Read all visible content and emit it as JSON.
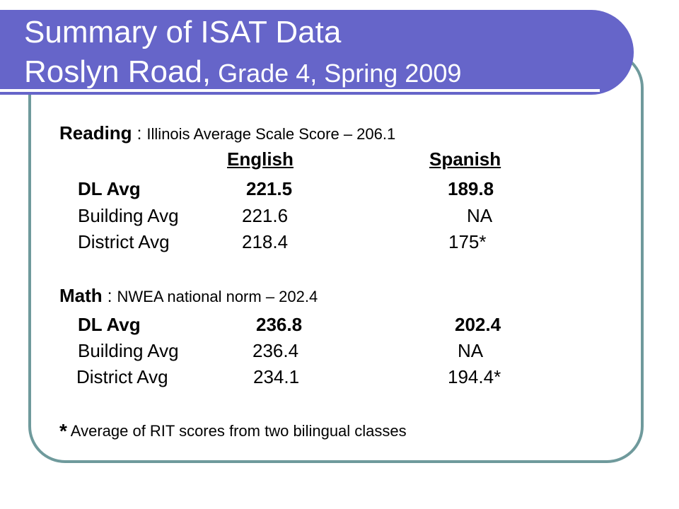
{
  "title": {
    "line1": "Summary of ISAT Data",
    "line2a": "Roslyn Road,",
    "line2b": " Grade 4, Spring 2009"
  },
  "reading": {
    "label": "Reading",
    "separator": " : ",
    "desc": "Illinois  Average Scale Score – 206.1",
    "col_english": "English",
    "col_spanish": "Spanish",
    "rows": [
      {
        "name": "DL Avg",
        "english": "221.5",
        "spanish": "189.8"
      },
      {
        "name": "Building Avg",
        "english": "221.6",
        "spanish": "NA"
      },
      {
        "name": "District Avg",
        "english": "218.4",
        "spanish": "175*"
      }
    ]
  },
  "math": {
    "label": "Math",
    "separator": " :  ",
    "desc": "NWEA national norm – 202.4",
    "rows": [
      {
        "name": "DL Avg",
        "english": "236.8",
        "spanish": "202.4"
      },
      {
        "name": "Building Avg",
        "english": "236.4",
        "spanish": "NA"
      },
      {
        "name": "District Avg",
        "english": "234.1",
        "spanish": "194.4*"
      }
    ]
  },
  "footnote": {
    "star": "*",
    "text": " Average of RIT scores from two bilingual classes"
  },
  "colors": {
    "title_band": "#6665c9",
    "panel_border": "#6f9a9c",
    "title_text": "#ffffff"
  }
}
